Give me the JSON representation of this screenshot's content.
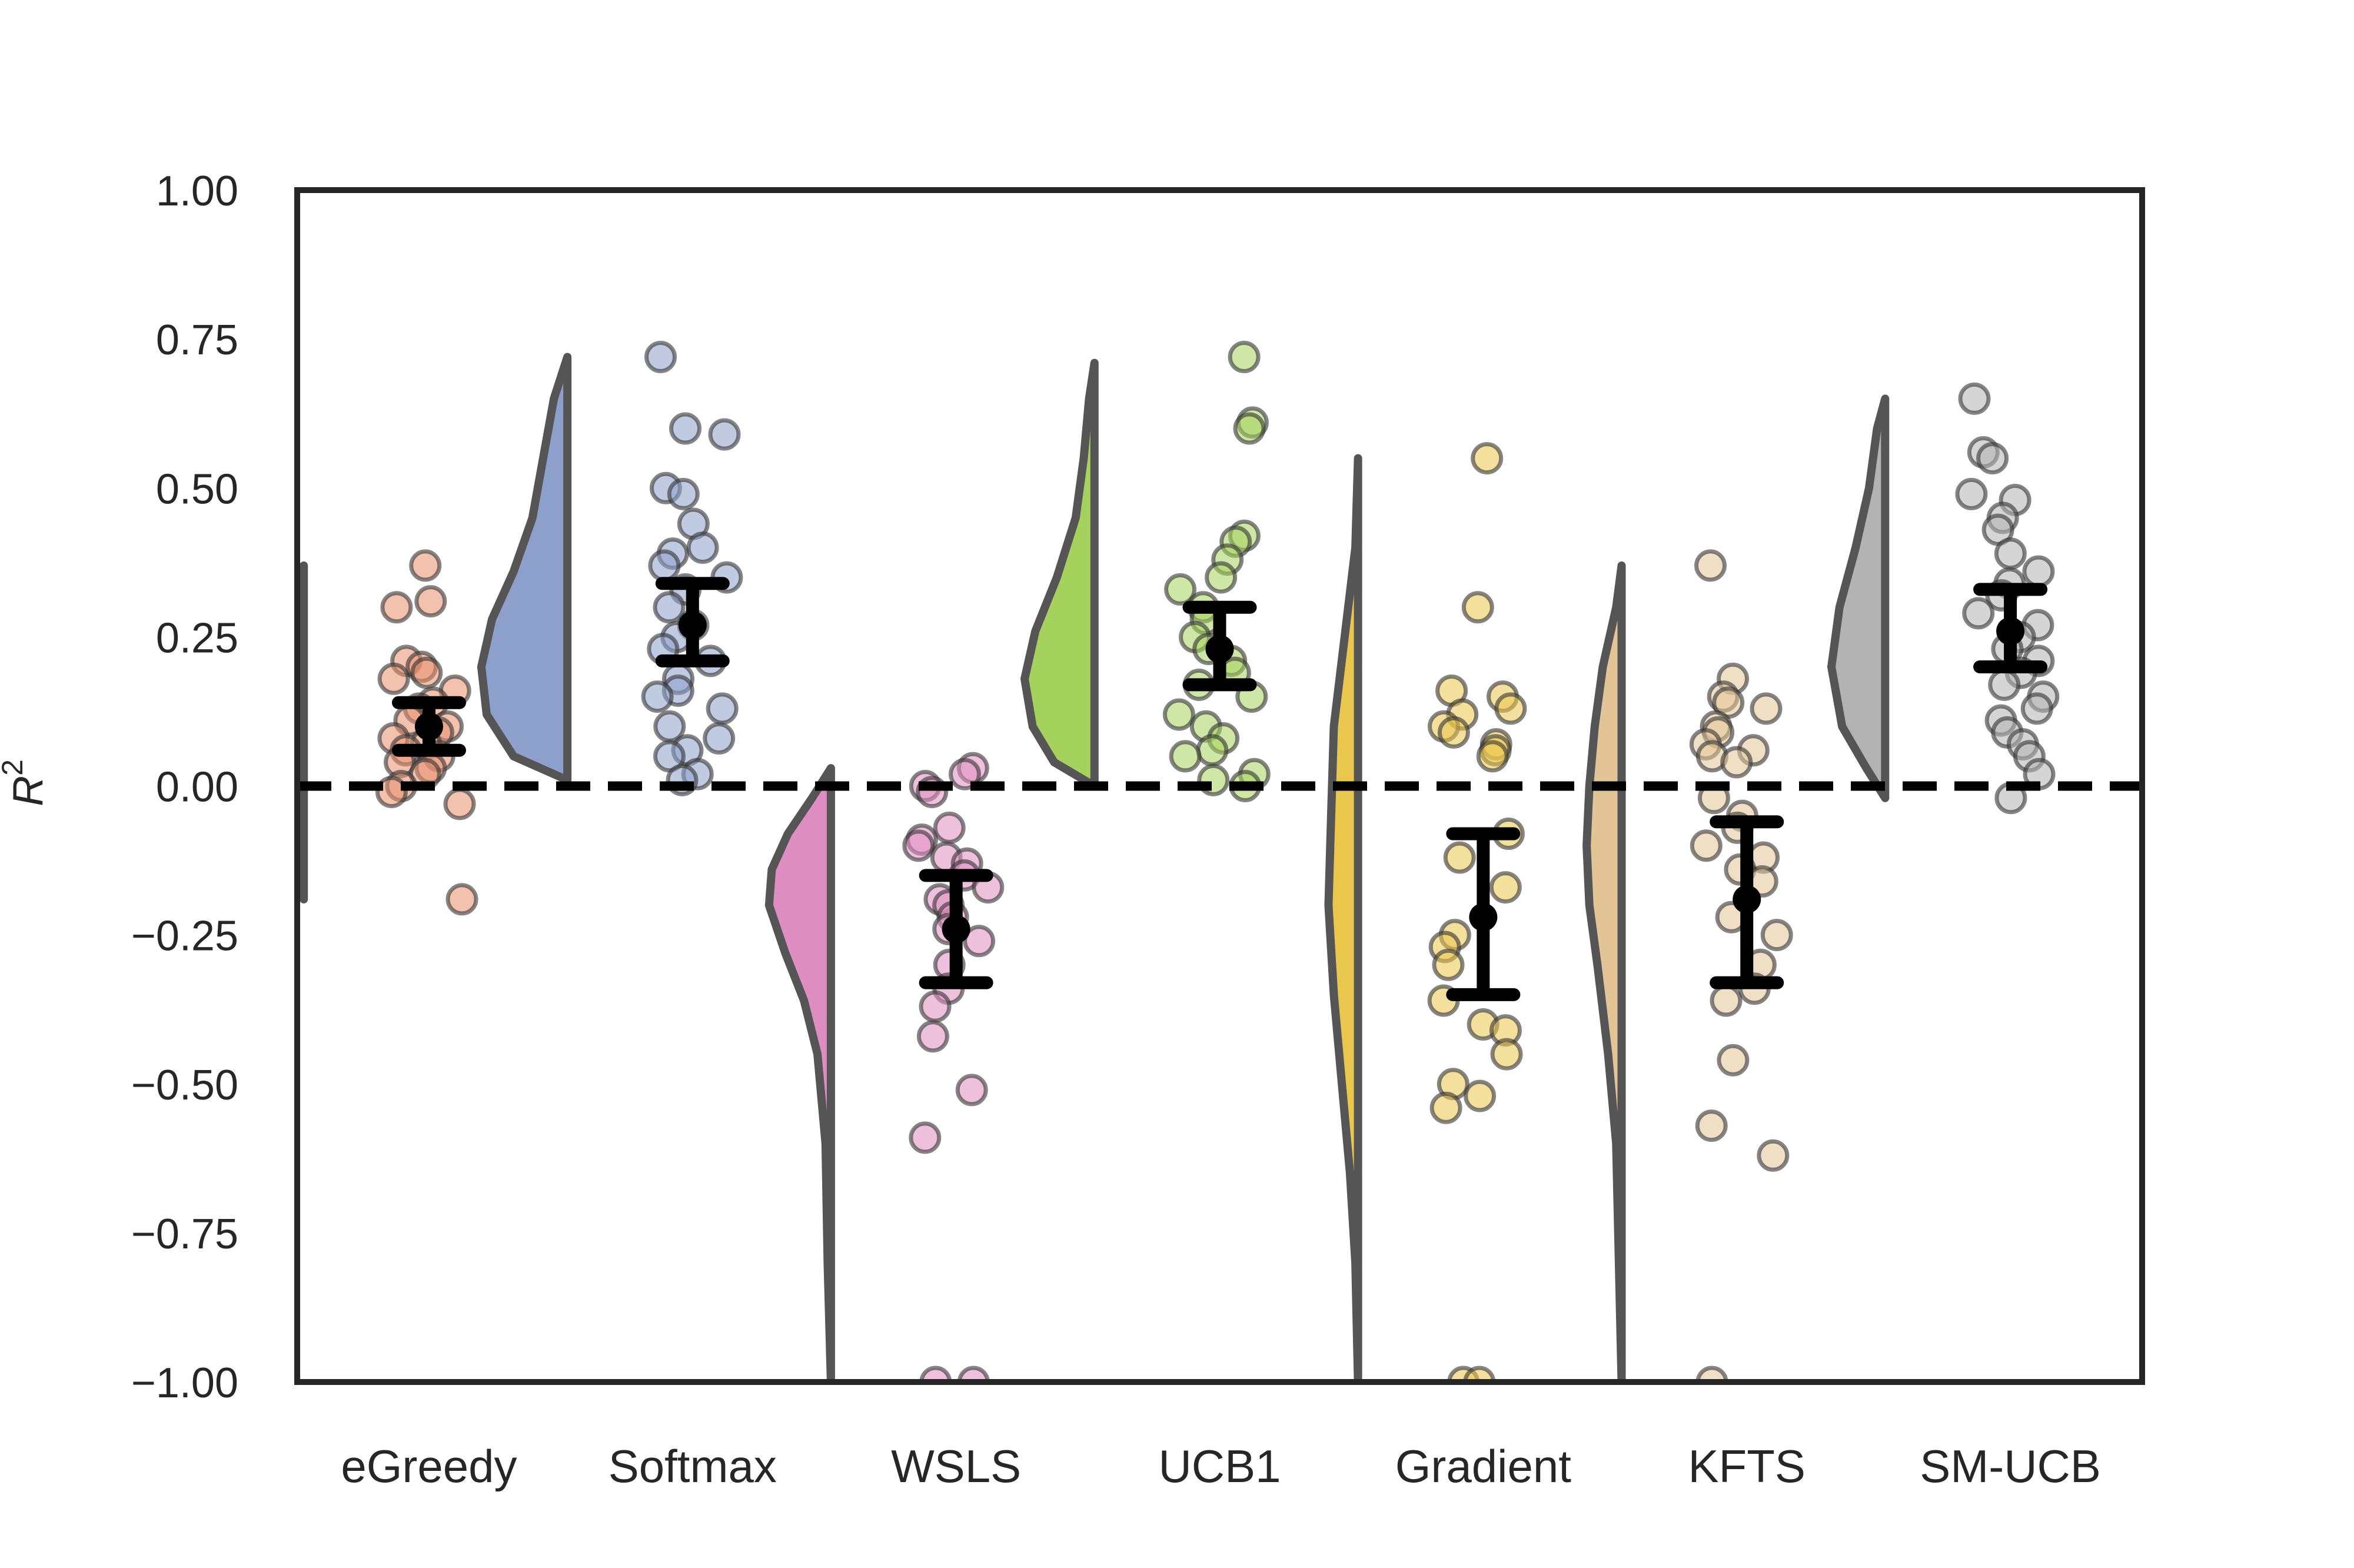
{
  "chart_data": {
    "type": "raincloud",
    "title": "",
    "xlabel": "",
    "ylabel": "R",
    "ylabel_superscript": "2",
    "ylim": [
      -1.0,
      1.0
    ],
    "yticks": [
      "1.00",
      "0.75",
      "0.50",
      "0.25",
      "0.00",
      "−0.25",
      "−0.50",
      "−0.75",
      "−1.00"
    ],
    "ytick_values": [
      1.0,
      0.75,
      0.5,
      0.25,
      0.0,
      -0.25,
      -0.5,
      -0.75,
      -1.0
    ],
    "reference_line": 0.0,
    "grid": false,
    "legend": "none",
    "categories": [
      "eGreedy",
      "Softmax",
      "WSLS",
      "UCB1",
      "Gradient",
      "KFTS",
      "SM-UCB"
    ],
    "colors": [
      "#e8906d",
      "#8da0cb",
      "#de8ec0",
      "#a5d15d",
      "#e9c74d",
      "#e2c496",
      "#b3b3b3"
    ],
    "series": [
      {
        "category": "eGreedy",
        "mean": 0.1,
        "ci": [
          0.06,
          0.14
        ],
        "violin_range": [
          -0.19,
          0.37
        ],
        "violin_widths": [
          [
            -0.19,
            0.0
          ],
          [
            -0.1,
            0.01
          ],
          [
            -0.05,
            0.07
          ],
          [
            0.0,
            0.17
          ],
          [
            0.05,
            0.28
          ],
          [
            0.12,
            0.33
          ],
          [
            0.18,
            0.29
          ],
          [
            0.24,
            0.17
          ],
          [
            0.3,
            0.09
          ],
          [
            0.34,
            0.06
          ],
          [
            0.37,
            0.0
          ]
        ],
        "points": [
          0.37,
          0.31,
          0.3,
          0.21,
          0.2,
          0.19,
          0.18,
          0.16,
          0.14,
          0.13,
          0.11,
          0.1,
          0.09,
          0.08,
          0.07,
          0.06,
          0.05,
          0.04,
          0.03,
          0.02,
          0.0,
          -0.01,
          -0.03,
          -0.19
        ]
      },
      {
        "category": "Softmax",
        "mean": 0.27,
        "ci": [
          0.21,
          0.34
        ],
        "violin_range": [
          0.01,
          0.72
        ],
        "violin_widths": [
          [
            0.01,
            0.0
          ],
          [
            0.05,
            0.2
          ],
          [
            0.12,
            0.3
          ],
          [
            0.2,
            0.32
          ],
          [
            0.28,
            0.28
          ],
          [
            0.36,
            0.2
          ],
          [
            0.45,
            0.13
          ],
          [
            0.55,
            0.09
          ],
          [
            0.65,
            0.05
          ],
          [
            0.72,
            0.0
          ]
        ],
        "points": [
          0.72,
          0.6,
          0.59,
          0.5,
          0.49,
          0.44,
          0.4,
          0.39,
          0.37,
          0.35,
          0.33,
          0.3,
          0.27,
          0.25,
          0.23,
          0.21,
          0.18,
          0.16,
          0.15,
          0.13,
          0.1,
          0.08,
          0.06,
          0.05,
          0.02,
          0.01
        ]
      },
      {
        "category": "WSLS",
        "mean": -0.24,
        "ci": [
          -0.33,
          -0.15
        ],
        "violin_range": [
          -1.0,
          0.03
        ],
        "violin_widths": [
          [
            0.03,
            0.0
          ],
          [
            -0.02,
            0.07
          ],
          [
            -0.08,
            0.16
          ],
          [
            -0.14,
            0.22
          ],
          [
            -0.2,
            0.23
          ],
          [
            -0.28,
            0.17
          ],
          [
            -0.36,
            0.1
          ],
          [
            -0.45,
            0.05
          ],
          [
            -0.6,
            0.02
          ],
          [
            -0.8,
            0.012
          ],
          [
            -1.0,
            0.0
          ]
        ],
        "points": [
          0.03,
          0.02,
          0.0,
          -0.01,
          -0.07,
          -0.09,
          -0.1,
          -0.12,
          -0.13,
          -0.15,
          -0.17,
          -0.19,
          -0.2,
          -0.22,
          -0.24,
          -0.26,
          -0.3,
          -0.34,
          -0.37,
          -0.42,
          -0.51,
          -0.59,
          -1.0,
          -1.0
        ]
      },
      {
        "category": "UCB1",
        "mean": 0.23,
        "ci": [
          0.17,
          0.3
        ],
        "violin_range": [
          0.0,
          0.71
        ],
        "violin_widths": [
          [
            0.0,
            0.0
          ],
          [
            0.04,
            0.15
          ],
          [
            0.1,
            0.23
          ],
          [
            0.18,
            0.26
          ],
          [
            0.26,
            0.22
          ],
          [
            0.35,
            0.14
          ],
          [
            0.45,
            0.07
          ],
          [
            0.55,
            0.04
          ],
          [
            0.65,
            0.02
          ],
          [
            0.71,
            0.0
          ]
        ],
        "points": [
          0.72,
          0.61,
          0.6,
          0.42,
          0.41,
          0.38,
          0.35,
          0.33,
          0.3,
          0.28,
          0.25,
          0.23,
          0.21,
          0.19,
          0.17,
          0.15,
          0.12,
          0.1,
          0.08,
          0.06,
          0.05,
          0.02,
          0.01,
          0.0
        ]
      },
      {
        "category": "Gradient",
        "mean": -0.22,
        "ci": [
          -0.35,
          -0.08
        ],
        "violin_range": [
          -1.0,
          0.55
        ],
        "violin_widths": [
          [
            0.55,
            0.0
          ],
          [
            0.4,
            0.01
          ],
          [
            0.25,
            0.05
          ],
          [
            0.1,
            0.09
          ],
          [
            -0.05,
            0.1
          ],
          [
            -0.2,
            0.11
          ],
          [
            -0.35,
            0.09
          ],
          [
            -0.5,
            0.06
          ],
          [
            -0.65,
            0.03
          ],
          [
            -0.8,
            0.01
          ],
          [
            -1.0,
            0.0
          ]
        ],
        "points": [
          0.55,
          0.3,
          0.16,
          0.15,
          0.13,
          0.12,
          0.1,
          0.09,
          0.07,
          0.06,
          0.05,
          -0.08,
          -0.12,
          -0.17,
          -0.25,
          -0.27,
          -0.3,
          -0.36,
          -0.4,
          -0.41,
          -0.45,
          -0.5,
          -0.52,
          -0.54,
          -1.0,
          -1.0
        ]
      },
      {
        "category": "KFTS",
        "mean": -0.19,
        "ci": [
          -0.33,
          -0.06
        ],
        "violin_range": [
          -1.0,
          0.37
        ],
        "violin_widths": [
          [
            0.37,
            0.0
          ],
          [
            0.3,
            0.02
          ],
          [
            0.2,
            0.07
          ],
          [
            0.1,
            0.1
          ],
          [
            0.0,
            0.12
          ],
          [
            -0.1,
            0.13
          ],
          [
            -0.2,
            0.12
          ],
          [
            -0.3,
            0.09
          ],
          [
            -0.45,
            0.05
          ],
          [
            -0.6,
            0.02
          ],
          [
            -0.8,
            0.01
          ],
          [
            -1.0,
            0.0
          ]
        ],
        "points": [
          0.37,
          0.18,
          0.15,
          0.14,
          0.13,
          0.1,
          0.09,
          0.07,
          0.06,
          0.05,
          0.04,
          -0.02,
          -0.05,
          -0.07,
          -0.1,
          -0.12,
          -0.14,
          -0.16,
          -0.22,
          -0.25,
          -0.3,
          -0.34,
          -0.36,
          -0.46,
          -0.57,
          -0.62,
          -1.0
        ]
      },
      {
        "category": "SM-UCB",
        "mean": 0.26,
        "ci": [
          0.2,
          0.33
        ],
        "violin_range": [
          -0.02,
          0.65
        ],
        "violin_widths": [
          [
            -0.02,
            0.0
          ],
          [
            0.03,
            0.07
          ],
          [
            0.1,
            0.16
          ],
          [
            0.2,
            0.2
          ],
          [
            0.3,
            0.17
          ],
          [
            0.4,
            0.11
          ],
          [
            0.5,
            0.06
          ],
          [
            0.6,
            0.03
          ],
          [
            0.65,
            0.0
          ]
        ],
        "points": [
          0.65,
          0.56,
          0.55,
          0.49,
          0.48,
          0.45,
          0.43,
          0.39,
          0.36,
          0.34,
          0.32,
          0.29,
          0.27,
          0.25,
          0.23,
          0.21,
          0.19,
          0.17,
          0.15,
          0.13,
          0.11,
          0.09,
          0.07,
          0.05,
          0.02,
          -0.02
        ]
      }
    ]
  }
}
